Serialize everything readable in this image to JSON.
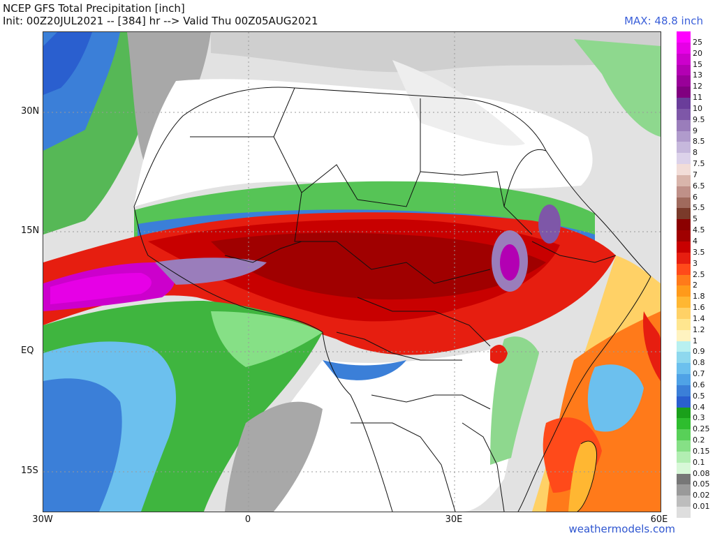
{
  "header": {
    "title_line1": "NCEP GFS Total Precipitation [inch]",
    "title_line2": "Init: 00Z20JUL2021 -- [384] hr --> Valid Thu 00Z05AUG2021",
    "max_label": "MAX: 48.8 inch"
  },
  "axes": {
    "lat_labels": [
      "30N",
      "15N",
      "EQ",
      "15S"
    ],
    "lon_labels": [
      "30W",
      "0",
      "30E",
      "60E"
    ]
  },
  "legend": {
    "values": [
      "25",
      "20",
      "15",
      "13",
      "12",
      "11",
      "10",
      "9.5",
      "9",
      "8.5",
      "8",
      "7.5",
      "7",
      "6.5",
      "6",
      "5.5",
      "5",
      "4.5",
      "4",
      "3.5",
      "3",
      "2.5",
      "2",
      "1.8",
      "1.6",
      "1.4",
      "1.2",
      "1",
      "0.9",
      "0.8",
      "0.7",
      "0.6",
      "0.5",
      "0.4",
      "0.3",
      "0.25",
      "0.2",
      "0.15",
      "0.1",
      "0.08",
      "0.05",
      "0.02",
      "0.01"
    ],
    "colors": [
      "#ff00ff",
      "#e600e6",
      "#cc00cc",
      "#b300b3",
      "#990099",
      "#800080",
      "#6a3d9a",
      "#7e57a8",
      "#9a7dbb",
      "#b09bcc",
      "#c6b8dc",
      "#dcd2ea",
      "#f2ddd8",
      "#d9b5ab",
      "#bf9088",
      "#a06a5d",
      "#7a3a2a",
      "#8b0000",
      "#a00000",
      "#c80000",
      "#e61e10",
      "#ff4a1a",
      "#ff7a1a",
      "#ff9a1a",
      "#ffb732",
      "#ffd166",
      "#ffe68f",
      "#fff3c0",
      "#b8f0f0",
      "#8ed8ee",
      "#6cc0ee",
      "#4fa2e6",
      "#3b7fd8",
      "#2a5fcf",
      "#1aa01a",
      "#2ebd2e",
      "#58d058",
      "#86e086",
      "#b2eeb2",
      "#d8f8d8",
      "#777777",
      "#9a9a9a",
      "#bdbdbd",
      "#dedede"
    ]
  },
  "footer": {
    "credit": "weathermodels.com"
  }
}
